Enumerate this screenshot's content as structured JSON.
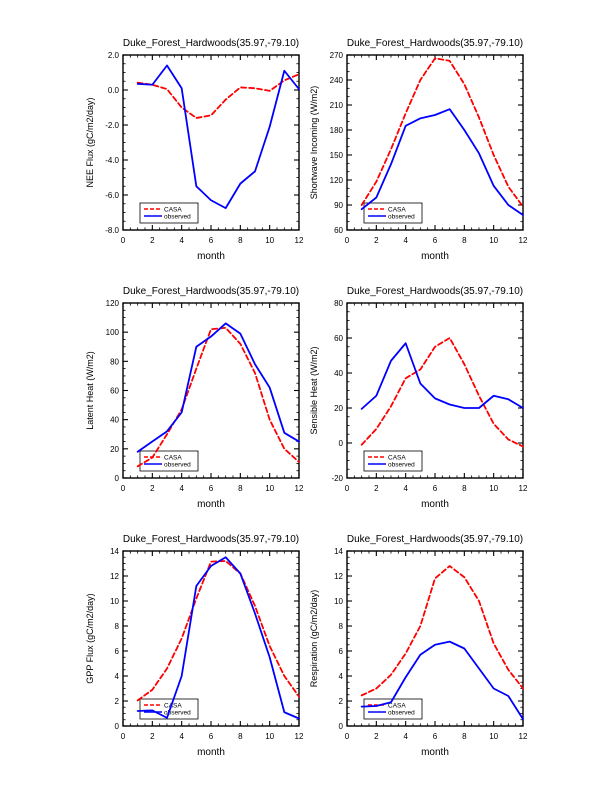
{
  "page": {
    "background": "#ffffff",
    "axis_color": "#000000",
    "casa_color": "#ff0000",
    "observed_color": "#0000ff"
  },
  "chart_data": [
    {
      "id": "nee-flux",
      "type": "line",
      "title": "Duke_Forest_Hardwoods(35.97,-79.10)",
      "xlabel": "month",
      "ylabel": "NEE Flux (gC/m2/day)",
      "x": [
        1,
        2,
        3,
        4,
        5,
        6,
        7,
        8,
        9,
        10,
        11,
        12
      ],
      "xlim": [
        0,
        12
      ],
      "xtick_step": 2,
      "xminor_step": 0.5,
      "ylim": [
        -8,
        2
      ],
      "ytick_step": 2,
      "yminor_step": 0.5,
      "ytick_decimals": 1,
      "grid": false,
      "legend_position": "bottom-left",
      "series": [
        {
          "name": "CASA",
          "color": "#ff0000",
          "style": "dashed",
          "values": [
            0.42,
            0.3,
            0.05,
            -1.0,
            -1.6,
            -1.45,
            -0.55,
            0.15,
            0.1,
            -0.05,
            0.55,
            0.9
          ]
        },
        {
          "name": "observed",
          "color": "#0000ff",
          "style": "solid",
          "values": [
            0.35,
            0.3,
            1.4,
            0.1,
            -5.5,
            -6.3,
            -6.75,
            -5.35,
            -4.65,
            -2.1,
            1.1,
            0.05
          ]
        }
      ]
    },
    {
      "id": "shortwave-incoming",
      "type": "line",
      "title": "Duke_Forest_Hardwoods(35.97,-79.10)",
      "xlabel": "month",
      "ylabel": "Shortwave Incoming (W/m2)",
      "x": [
        1,
        2,
        3,
        4,
        5,
        6,
        7,
        8,
        9,
        10,
        11,
        12
      ],
      "xlim": [
        0,
        12
      ],
      "xtick_step": 2,
      "xminor_step": 0.5,
      "ylim": [
        60,
        270
      ],
      "ytick_step": 30,
      "yminor_step": 10,
      "ytick_decimals": 0,
      "grid": false,
      "legend_position": "bottom-left",
      "series": [
        {
          "name": "CASA",
          "color": "#ff0000",
          "style": "dashed",
          "values": [
            90,
            118,
            157,
            200,
            240,
            266,
            263,
            235,
            195,
            150,
            112,
            88
          ]
        },
        {
          "name": "observed",
          "color": "#0000ff",
          "style": "solid",
          "values": [
            85,
            99,
            139,
            185,
            194,
            198,
            205,
            180,
            152,
            113,
            90,
            78
          ]
        }
      ]
    },
    {
      "id": "latent-heat",
      "type": "line",
      "title": "Duke_Forest_Hardwoods(35.97,-79.10)",
      "xlabel": "month",
      "ylabel": "Latent Heat (W/m2)",
      "x": [
        1,
        2,
        3,
        4,
        5,
        6,
        7,
        8,
        9,
        10,
        11,
        12
      ],
      "xlim": [
        0,
        12
      ],
      "xtick_step": 2,
      "xminor_step": 0.5,
      "ylim": [
        0,
        120
      ],
      "ytick_step": 20,
      "yminor_step": 5,
      "ytick_decimals": 0,
      "grid": false,
      "legend_position": "bottom-left",
      "series": [
        {
          "name": "CASA",
          "color": "#ff0000",
          "style": "dashed",
          "values": [
            8,
            14,
            30,
            47,
            75,
            102,
            103,
            92,
            72,
            40,
            20,
            11
          ]
        },
        {
          "name": "observed",
          "color": "#0000ff",
          "style": "solid",
          "values": [
            18,
            25,
            32,
            45,
            90,
            97,
            106,
            99,
            78,
            62,
            31,
            25
          ]
        }
      ]
    },
    {
      "id": "sensible-heat",
      "type": "line",
      "title": "Duke_Forest_Hardwoods(35.97,-79.10)",
      "xlabel": "month",
      "ylabel": "Sensible Heat (W/m2)",
      "x": [
        1,
        2,
        3,
        4,
        5,
        6,
        7,
        8,
        9,
        10,
        11,
        12
      ],
      "xlim": [
        0,
        12
      ],
      "xtick_step": 2,
      "xminor_step": 0.5,
      "ylim": [
        -20,
        80
      ],
      "ytick_step": 20,
      "yminor_step": 5,
      "ytick_decimals": 0,
      "grid": false,
      "legend_position": "bottom-left",
      "series": [
        {
          "name": "CASA",
          "color": "#ff0000",
          "style": "dashed",
          "values": [
            -1,
            8,
            21,
            37,
            42,
            55,
            60,
            45,
            27,
            11,
            2,
            -2
          ]
        },
        {
          "name": "observed",
          "color": "#0000ff",
          "style": "solid",
          "values": [
            19.5,
            27,
            47,
            57,
            34,
            25.5,
            22,
            20,
            20,
            27,
            25,
            20
          ]
        }
      ]
    },
    {
      "id": "gpp-flux",
      "type": "line",
      "title": "Duke_Forest_Hardwoods(35.97,-79.10)",
      "xlabel": "month",
      "ylabel": "GPP Flux (gC/m2/day)",
      "x": [
        1,
        2,
        3,
        4,
        5,
        6,
        7,
        8,
        9,
        10,
        11,
        12
      ],
      "xlim": [
        0,
        12
      ],
      "xtick_step": 2,
      "xminor_step": 0.5,
      "ylim": [
        0,
        14
      ],
      "ytick_step": 2,
      "yminor_step": 0.5,
      "ytick_decimals": 0,
      "grid": false,
      "legend_position": "bottom-left",
      "series": [
        {
          "name": "CASA",
          "color": "#ff0000",
          "style": "dashed",
          "values": [
            2.05,
            2.9,
            4.6,
            7.0,
            10.2,
            13.15,
            13.2,
            12.2,
            9.6,
            6.4,
            4.0,
            2.35
          ]
        },
        {
          "name": "observed",
          "color": "#0000ff",
          "style": "solid",
          "values": [
            1.2,
            1.25,
            0.65,
            4.0,
            11.2,
            12.8,
            13.5,
            12.2,
            9.0,
            5.5,
            1.1,
            0.6
          ]
        }
      ]
    },
    {
      "id": "respiration",
      "type": "line",
      "title": "Duke_Forest_Hardwoods(35.97,-79.10)",
      "xlabel": "month",
      "ylabel": "Respiration (gC/m2/day)",
      "x": [
        1,
        2,
        3,
        4,
        5,
        6,
        7,
        8,
        9,
        10,
        11,
        12
      ],
      "xlim": [
        0,
        12
      ],
      "xtick_step": 2,
      "xminor_step": 0.5,
      "ylim": [
        0,
        14
      ],
      "ytick_step": 2,
      "yminor_step": 0.5,
      "ytick_decimals": 0,
      "grid": false,
      "legend_position": "bottom-left",
      "series": [
        {
          "name": "CASA",
          "color": "#ff0000",
          "style": "dashed",
          "values": [
            2.45,
            3.0,
            4.1,
            5.8,
            8.0,
            11.8,
            12.8,
            11.9,
            10.0,
            6.6,
            4.5,
            3.0
          ]
        },
        {
          "name": "observed",
          "color": "#0000ff",
          "style": "solid",
          "values": [
            1.55,
            1.6,
            1.9,
            3.9,
            5.7,
            6.5,
            6.75,
            6.2,
            4.6,
            3.0,
            2.4,
            0.55
          ]
        }
      ]
    }
  ]
}
